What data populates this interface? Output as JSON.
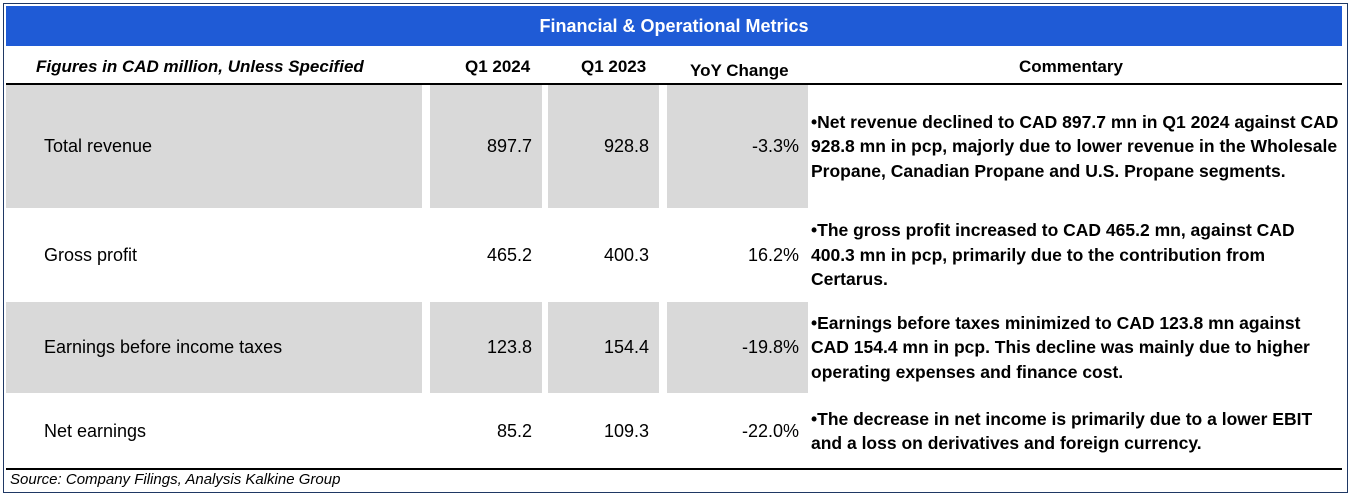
{
  "title": "Financial & Operational Metrics",
  "headers": {
    "label": "Figures in CAD million, Unless Specified",
    "q1_2024": "Q1 2024",
    "q1_2023": "Q1 2023",
    "yoy": "YoY Change",
    "commentary": "Commentary"
  },
  "rows": [
    {
      "label": "Total revenue",
      "q1_2024": "897.7",
      "q1_2023": "928.8",
      "yoy": "-3.3%",
      "commentary": "•Net revenue declined to CAD 897.7 mn in Q1 2024 against CAD 928.8 mn in pcp, majorly due to lower revenue in the Wholesale Propane, Canadian Propane and U.S. Propane segments."
    },
    {
      "label": "Gross profit",
      "q1_2024": "465.2",
      "q1_2023": "400.3",
      "yoy": "16.2%",
      "commentary": "•The gross profit increased to CAD 465.2 mn, against CAD 400.3 mn in pcp, primarily due to the contribution from Certarus."
    },
    {
      "label": "Earnings before income taxes",
      "q1_2024": "123.8",
      "q1_2023": "154.4",
      "yoy": "-19.8%",
      "commentary": "•Earnings before taxes minimized to CAD 123.8 mn against CAD 154.4 mn in pcp. This decline was mainly due to higher operating expenses and finance cost."
    },
    {
      "label": "Net earnings",
      "q1_2024": "85.2",
      "q1_2023": "109.3",
      "yoy": "-22.0%",
      "commentary": "•The decrease in net income is primarily due to a lower EBIT and a loss on derivatives and foreign currency."
    }
  ],
  "source": "Source: Company Filings, Analysis Kalkine Group",
  "colors": {
    "title_bar": "#1f5bd6",
    "shade": "#d9d9d9"
  }
}
